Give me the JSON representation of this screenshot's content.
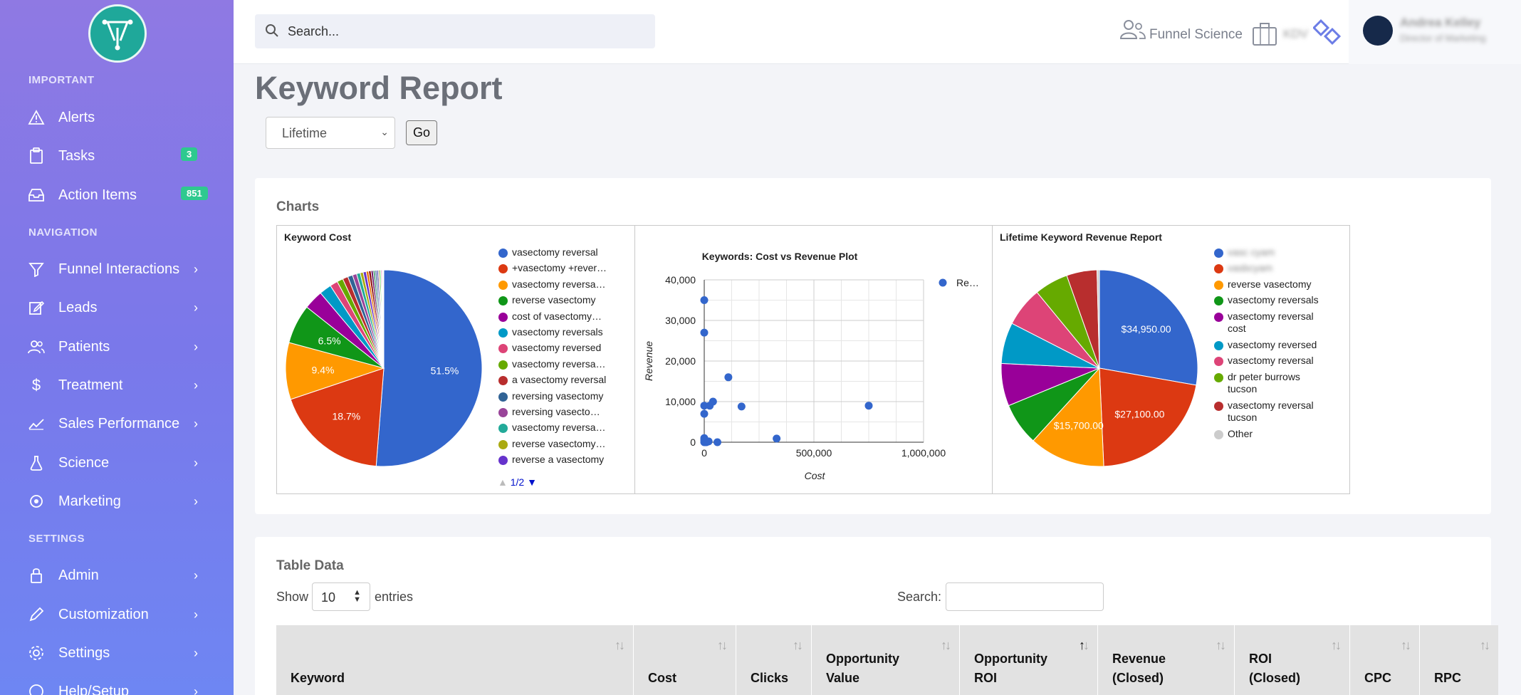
{
  "sidebar": {
    "sections": {
      "important": "IMPORTANT",
      "navigation": "NAVIGATION",
      "settings": "SETTINGS"
    },
    "items": [
      {
        "label": "Alerts",
        "badge": ""
      },
      {
        "label": "Tasks",
        "badge": "3"
      },
      {
        "label": "Action Items",
        "badge": "851"
      },
      {
        "label": "Funnel Interactions"
      },
      {
        "label": "Leads"
      },
      {
        "label": "Patients"
      },
      {
        "label": "Treatment"
      },
      {
        "label": "Sales Performance"
      },
      {
        "label": "Science"
      },
      {
        "label": "Marketing"
      },
      {
        "label": "Admin"
      },
      {
        "label": "Customization"
      },
      {
        "label": "Settings"
      },
      {
        "label": "Help/Setup"
      }
    ],
    "chevron": "›"
  },
  "topbar": {
    "search_placeholder": "Search...",
    "funnel_science": "Funnel Science",
    "kdv": "KDV",
    "user_name": "Andrea Kelley",
    "user_role": "Director of Marketing"
  },
  "page": {
    "title": "Keyword Report",
    "range_value": "Lifetime",
    "go_label": "Go"
  },
  "charts_card": {
    "title": "Charts"
  },
  "chart_data": [
    {
      "type": "pie",
      "title": "Keyword Cost",
      "legend_page": "1/2",
      "series": [
        {
          "name": "vasectomy reversal",
          "value": 51.5,
          "label": "51.5%",
          "color": "#3366cc"
        },
        {
          "name": "+vasectomy +rever…",
          "value": 18.7,
          "label": "18.7%",
          "color": "#dc3912"
        },
        {
          "name": "vasectomy reversa…",
          "value": 9.4,
          "label": "9.4%",
          "color": "#ff9900"
        },
        {
          "name": "reverse vasectomy",
          "value": 6.5,
          "label": "6.5%",
          "color": "#109618"
        },
        {
          "name": "cost of vasectomy…",
          "value": 3.2,
          "label": "",
          "color": "#990099"
        },
        {
          "name": "vasectomy reversals",
          "value": 2.0,
          "label": "",
          "color": "#0099c6"
        },
        {
          "name": "vasectomy reversed",
          "value": 1.3,
          "label": "",
          "color": "#dd4477"
        },
        {
          "name": "vasectomy reversa…",
          "value": 1.0,
          "label": "",
          "color": "#66aa00"
        },
        {
          "name": "a vasectomy reversal",
          "value": 0.9,
          "label": "",
          "color": "#b82e2e"
        },
        {
          "name": "reversing vasectomy",
          "value": 0.8,
          "label": "",
          "color": "#316395"
        },
        {
          "name": "reversing vasecto…",
          "value": 0.7,
          "label": "",
          "color": "#994499"
        },
        {
          "name": "vasectomy reversa…",
          "value": 0.6,
          "label": "",
          "color": "#22aa99"
        },
        {
          "name": "reverse vasectomy…",
          "value": 0.5,
          "label": "",
          "color": "#aaaa11"
        },
        {
          "name": "reverse a vasectomy",
          "value": 0.5,
          "label": "",
          "color": "#6633cc"
        },
        {
          "name": "",
          "value": 0.4,
          "label": "",
          "color": "#e67300"
        },
        {
          "name": "",
          "value": 0.4,
          "label": "",
          "color": "#8b0707"
        },
        {
          "name": "",
          "value": 0.35,
          "label": "",
          "color": "#651067"
        },
        {
          "name": "",
          "value": 0.3,
          "label": "",
          "color": "#329262"
        },
        {
          "name": "",
          "value": 0.3,
          "label": "",
          "color": "#5574a6"
        },
        {
          "name": "",
          "value": 0.25,
          "label": "",
          "color": "#3b3eac"
        },
        {
          "name": "",
          "value": 0.2,
          "label": "",
          "color": "#b77322"
        },
        {
          "name": "",
          "value": 0.2,
          "label": "",
          "color": "#16d620"
        },
        {
          "name": "",
          "value": 0.15,
          "label": "",
          "color": "#b91383"
        },
        {
          "name": "",
          "value": 0.15,
          "label": "",
          "color": "#f4359e"
        },
        {
          "name": "",
          "value": 0.1,
          "label": "",
          "color": "#9c5935"
        },
        {
          "name": "",
          "value": 0.1,
          "label": "",
          "color": "#a9c413"
        }
      ]
    },
    {
      "type": "scatter",
      "title": "Keywords: Cost vs Revenue Plot",
      "xlabel": "Cost",
      "ylabel": "Revenue",
      "xlim": [
        0,
        1000000
      ],
      "ylim": [
        0,
        40000
      ],
      "xticks": [
        "0",
        "500,000",
        "1,000,000"
      ],
      "yticks": [
        "0",
        "10,000",
        "20,000",
        "30,000",
        "40,000"
      ],
      "legend": "Re…",
      "color": "#3366cc",
      "points": [
        [
          0,
          35000
        ],
        [
          0,
          27000
        ],
        [
          0,
          9000
        ],
        [
          0,
          7000
        ],
        [
          0,
          1000
        ],
        [
          0,
          500
        ],
        [
          0,
          0
        ],
        [
          5000,
          0
        ],
        [
          10000,
          0
        ],
        [
          20000,
          200
        ],
        [
          25000,
          9000
        ],
        [
          40000,
          10000
        ],
        [
          60000,
          0
        ],
        [
          110000,
          16000
        ],
        [
          170000,
          8800
        ],
        [
          330000,
          900
        ],
        [
          750000,
          9000
        ]
      ]
    },
    {
      "type": "pie",
      "title": "Lifetime Keyword Revenue Report",
      "series": [
        {
          "name": "vasc cyam",
          "value": 34950,
          "label": "$34,950.00",
          "color": "#3366cc",
          "blurred": true
        },
        {
          "name": "vasbcyam",
          "value": 27100,
          "label": "$27,100.00",
          "color": "#dc3912",
          "blurred": true
        },
        {
          "name": "reverse vasectomy",
          "value": 15700,
          "label": "$15,700.00",
          "color": "#ff9900"
        },
        {
          "name": "vasectomy reversals",
          "value": 8800,
          "label": "",
          "color": "#109618"
        },
        {
          "name": "vasectomy reversal cost",
          "value": 8800,
          "label": "",
          "color": "#990099"
        },
        {
          "name": "vasectomy reversed",
          "value": 8500,
          "label": "",
          "color": "#0099c6"
        },
        {
          "name": "vasectomy reversal",
          "value": 8200,
          "label": "",
          "color": "#dd4477"
        },
        {
          "name": "dr peter burrows tucson",
          "value": 7000,
          "label": "",
          "color": "#66aa00"
        },
        {
          "name": "vasectomy reversal tucson",
          "value": 6300,
          "label": "",
          "color": "#b82e2e"
        },
        {
          "name": "Other",
          "value": 500,
          "label": "",
          "color": "#cccccc"
        }
      ]
    }
  ],
  "table_card": {
    "title": "Table Data",
    "show_label": "Show",
    "entries_value": "10",
    "entries_label": "entries",
    "search_label": "Search:",
    "columns": [
      {
        "line1": "Keyword",
        "line2": ""
      },
      {
        "line1": "Cost",
        "line2": ""
      },
      {
        "line1": "Clicks",
        "line2": ""
      },
      {
        "line1": "Opportunity",
        "line2": "Value"
      },
      {
        "line1": "Opportunity",
        "line2": "ROI"
      },
      {
        "line1": "Revenue",
        "line2": "(Closed)"
      },
      {
        "line1": "ROI",
        "line2": "(Closed)"
      },
      {
        "line1": "CPC",
        "line2": ""
      },
      {
        "line1": "RPC",
        "line2": ""
      }
    ]
  }
}
